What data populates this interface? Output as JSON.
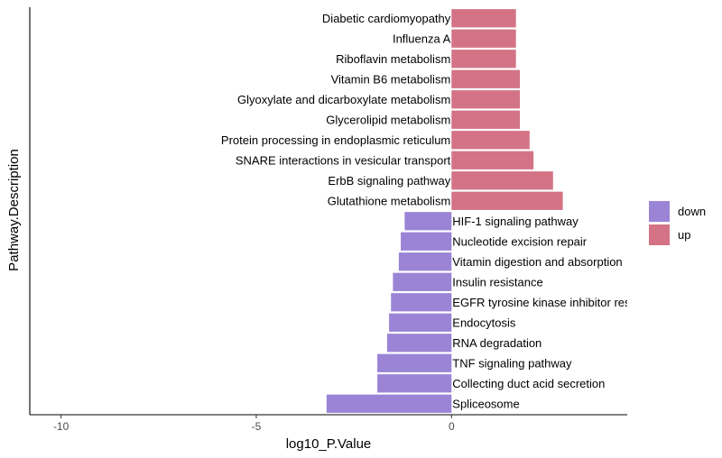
{
  "chart_data": {
    "type": "bar",
    "orientation": "horizontal",
    "xlabel": "log10_P.Value",
    "ylabel": "Pathway.Description",
    "xlim": [
      -10.8,
      4.5
    ],
    "xticks": [
      -10,
      -5,
      0
    ],
    "xtick_labels": [
      "-10",
      "-5",
      "0"
    ],
    "grid": false,
    "legend_position": "right",
    "colors": {
      "down": "#9b84d6",
      "up": "#d37385"
    },
    "legend": [
      {
        "key": "down",
        "label": "down"
      },
      {
        "key": "up",
        "label": "up"
      }
    ],
    "bars": [
      {
        "label": "Diabetic cardiomyopathy",
        "value": 1.65,
        "group": "up"
      },
      {
        "label": "Influenza A",
        "value": 1.65,
        "group": "up"
      },
      {
        "label": "Riboflavin metabolism",
        "value": 1.65,
        "group": "up"
      },
      {
        "label": "Vitamin B6 metabolism",
        "value": 1.75,
        "group": "up"
      },
      {
        "label": "Glyoxylate and dicarboxylate metabolism",
        "value": 1.75,
        "group": "up"
      },
      {
        "label": "Glycerolipid metabolism",
        "value": 1.75,
        "group": "up"
      },
      {
        "label": "Protein processing in endoplasmic reticulum",
        "value": 2.0,
        "group": "up"
      },
      {
        "label": "SNARE interactions in vesicular transport",
        "value": 2.1,
        "group": "up"
      },
      {
        "label": "ErbB signaling pathway",
        "value": 2.6,
        "group": "up"
      },
      {
        "label": "Glutathione metabolism",
        "value": 2.85,
        "group": "up"
      },
      {
        "label": "HIF-1 signaling pathway",
        "value": -1.2,
        "group": "down"
      },
      {
        "label": "Nucleotide excision repair",
        "value": -1.3,
        "group": "down"
      },
      {
        "label": "Vitamin digestion and absorption",
        "value": -1.35,
        "group": "down"
      },
      {
        "label": "Insulin resistance",
        "value": -1.5,
        "group": "down"
      },
      {
        "label": "EGFR tyrosine kinase inhibitor resistance",
        "value": -1.55,
        "group": "down"
      },
      {
        "label": "Endocytosis",
        "value": -1.6,
        "group": "down"
      },
      {
        "label": "RNA degradation",
        "value": -1.65,
        "group": "down"
      },
      {
        "label": "TNF signaling pathway",
        "value": -1.9,
        "group": "down"
      },
      {
        "label": "Collecting duct acid secretion",
        "value": -1.9,
        "group": "down"
      },
      {
        "label": "Spliceosome",
        "value": -3.2,
        "group": "down"
      }
    ]
  }
}
